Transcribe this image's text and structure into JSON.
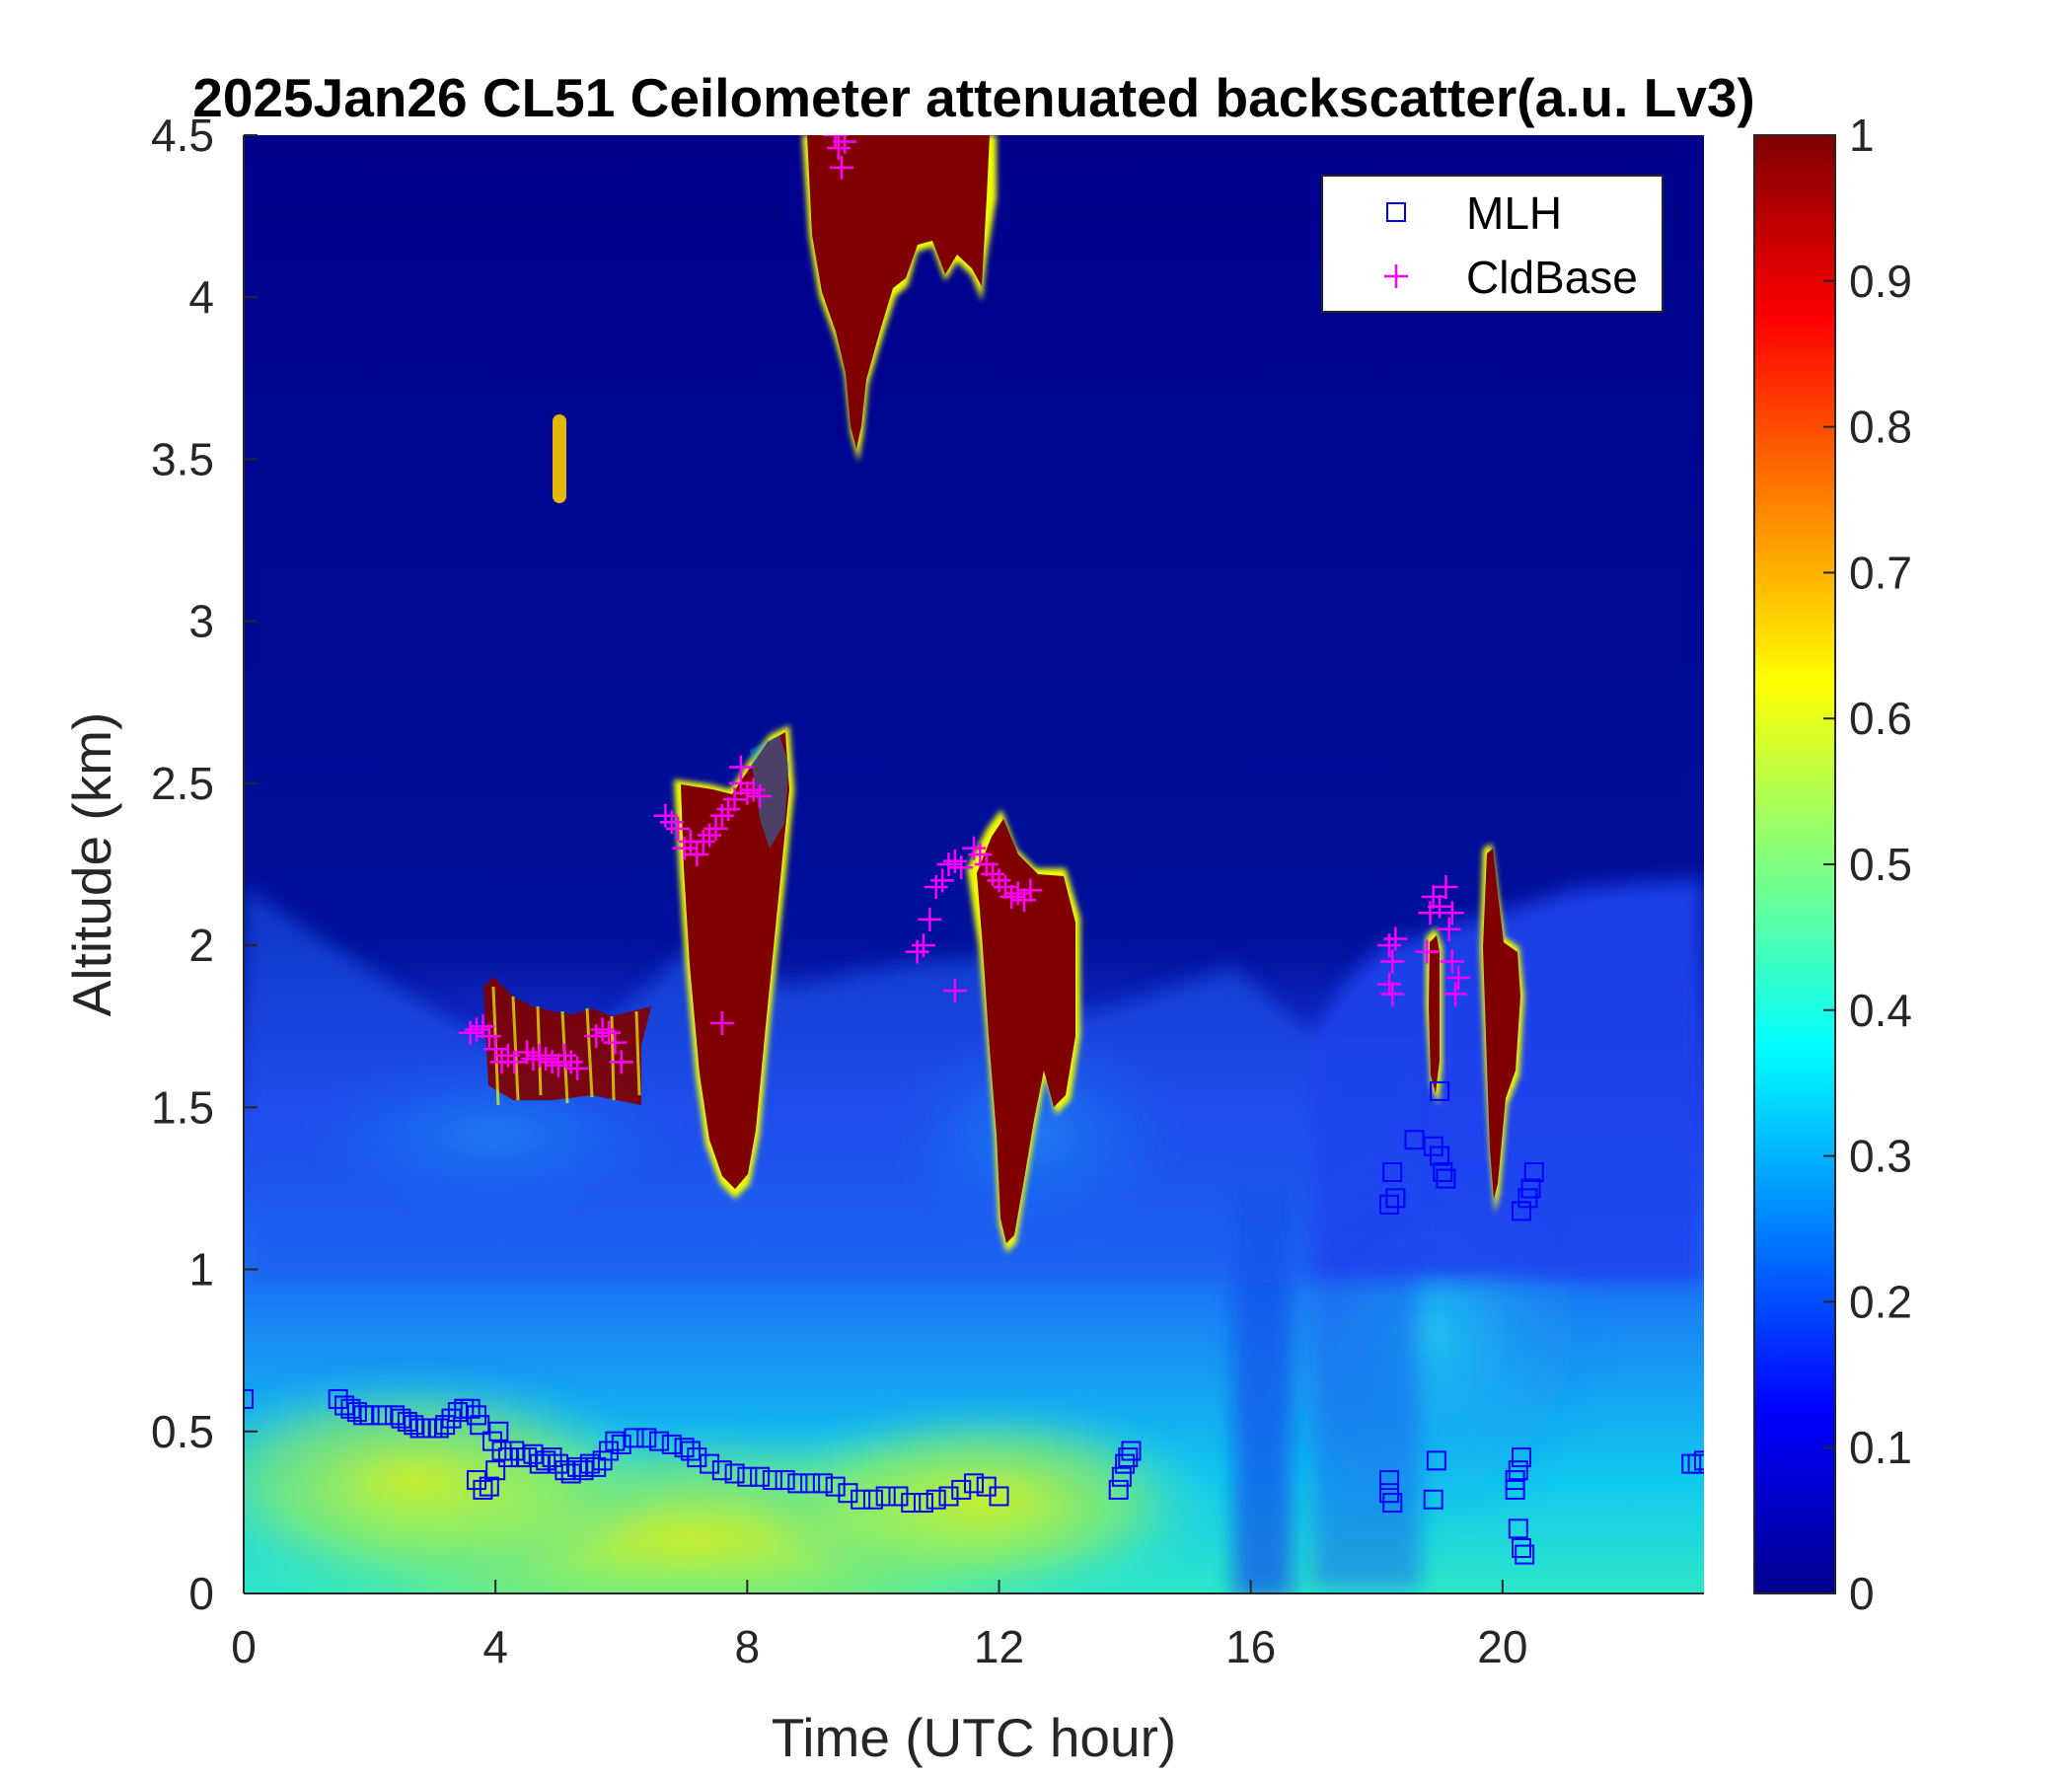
{
  "chart_data": {
    "type": "heatmap",
    "title": "2025Jan26 CL51 Ceilometer attenuated backscatter(a.u. Lv3)",
    "xlabel": "Time (UTC hour)",
    "ylabel": "Altitude (km)",
    "xlim": [
      0,
      23.2
    ],
    "ylim": [
      0,
      4.5
    ],
    "x_ticks": [
      "0",
      "4",
      "8",
      "12",
      "16",
      "20"
    ],
    "y_ticks": [
      "0",
      "0.5",
      "1",
      "1.5",
      "2",
      "2.5",
      "3",
      "3.5",
      "4",
      "4.5"
    ],
    "colorbar": {
      "colormap": "jet",
      "range": [
        0,
        1
      ],
      "ticks": [
        "0",
        "0.1",
        "0.2",
        "0.3",
        "0.4",
        "0.5",
        "0.6",
        "0.7",
        "0.8",
        "0.9",
        "1"
      ]
    },
    "legend": {
      "placement": "top-right",
      "entries": [
        {
          "label": "MLH",
          "marker": "square",
          "color": "#0000ff"
        },
        {
          "label": "CldBase",
          "marker": "plus",
          "color": "#ff00ff"
        }
      ]
    },
    "series": [
      {
        "name": "MLH",
        "marker": "square",
        "color": "#0000ff",
        "points": [
          [
            0.0,
            0.6
          ],
          [
            1.5,
            0.6
          ],
          [
            1.6,
            0.58
          ],
          [
            1.7,
            0.57
          ],
          [
            1.8,
            0.56
          ],
          [
            1.9,
            0.55
          ],
          [
            2.0,
            0.55
          ],
          [
            2.2,
            0.55
          ],
          [
            2.4,
            0.55
          ],
          [
            2.5,
            0.54
          ],
          [
            2.6,
            0.53
          ],
          [
            2.7,
            0.52
          ],
          [
            2.8,
            0.51
          ],
          [
            2.9,
            0.51
          ],
          [
            3.0,
            0.51
          ],
          [
            3.1,
            0.51
          ],
          [
            3.2,
            0.52
          ],
          [
            3.3,
            0.54
          ],
          [
            3.4,
            0.56
          ],
          [
            3.5,
            0.57
          ],
          [
            3.6,
            0.57
          ],
          [
            3.7,
            0.55
          ],
          [
            3.75,
            0.52
          ],
          [
            3.7,
            0.35
          ],
          [
            3.8,
            0.32
          ],
          [
            3.9,
            0.33
          ],
          [
            3.95,
            0.47
          ],
          [
            4.0,
            0.38
          ],
          [
            4.05,
            0.5
          ],
          [
            4.1,
            0.44
          ],
          [
            4.2,
            0.42
          ],
          [
            4.3,
            0.44
          ],
          [
            4.4,
            0.42
          ],
          [
            4.5,
            0.42
          ],
          [
            4.6,
            0.43
          ],
          [
            4.7,
            0.4
          ],
          [
            4.8,
            0.41
          ],
          [
            4.9,
            0.42
          ],
          [
            5.0,
            0.4
          ],
          [
            5.1,
            0.38
          ],
          [
            5.2,
            0.37
          ],
          [
            5.3,
            0.39
          ],
          [
            5.4,
            0.38
          ],
          [
            5.5,
            0.4
          ],
          [
            5.6,
            0.39
          ],
          [
            5.7,
            0.41
          ],
          [
            5.8,
            0.44
          ],
          [
            5.9,
            0.47
          ],
          [
            6.0,
            0.46
          ],
          [
            6.2,
            0.48
          ],
          [
            6.4,
            0.48
          ],
          [
            6.6,
            0.47
          ],
          [
            6.8,
            0.46
          ],
          [
            7.0,
            0.45
          ],
          [
            7.1,
            0.44
          ],
          [
            7.2,
            0.42
          ],
          [
            7.4,
            0.4
          ],
          [
            7.6,
            0.38
          ],
          [
            7.8,
            0.37
          ],
          [
            8.0,
            0.36
          ],
          [
            8.2,
            0.36
          ],
          [
            8.4,
            0.35
          ],
          [
            8.6,
            0.35
          ],
          [
            8.8,
            0.34
          ],
          [
            9.0,
            0.34
          ],
          [
            9.2,
            0.34
          ],
          [
            9.4,
            0.33
          ],
          [
            9.6,
            0.31
          ],
          [
            9.8,
            0.29
          ],
          [
            10.0,
            0.29
          ],
          [
            10.2,
            0.3
          ],
          [
            10.4,
            0.3
          ],
          [
            10.6,
            0.28
          ],
          [
            10.8,
            0.28
          ],
          [
            11.0,
            0.29
          ],
          [
            11.2,
            0.3
          ],
          [
            11.4,
            0.32
          ],
          [
            11.6,
            0.34
          ],
          [
            11.8,
            0.33
          ],
          [
            12.0,
            0.3
          ],
          [
            13.9,
            0.32
          ],
          [
            13.95,
            0.36
          ],
          [
            14.0,
            0.4
          ],
          [
            14.05,
            0.42
          ],
          [
            14.1,
            0.44
          ],
          [
            18.2,
            0.35
          ],
          [
            18.25,
            0.28
          ],
          [
            18.2,
            0.31
          ],
          [
            18.9,
            0.29
          ],
          [
            18.95,
            0.41
          ],
          [
            18.2,
            1.2
          ],
          [
            18.25,
            1.3
          ],
          [
            18.3,
            1.22
          ],
          [
            18.6,
            1.4
          ],
          [
            18.9,
            1.38
          ],
          [
            19.0,
            1.55
          ],
          [
            19.05,
            1.3
          ],
          [
            19.1,
            1.28
          ],
          [
            19.0,
            1.35
          ],
          [
            20.2,
            0.35
          ],
          [
            20.25,
            0.38
          ],
          [
            20.3,
            0.42
          ],
          [
            20.2,
            0.32
          ],
          [
            20.25,
            0.2
          ],
          [
            20.3,
            0.14
          ],
          [
            20.35,
            0.12
          ],
          [
            20.3,
            1.18
          ],
          [
            20.4,
            1.22
          ],
          [
            20.5,
            1.3
          ],
          [
            20.45,
            1.25
          ],
          [
            23.0,
            0.4
          ],
          [
            23.1,
            0.4
          ],
          [
            23.2,
            0.41
          ]
        ]
      },
      {
        "name": "CldBase",
        "marker": "plus",
        "color": "#ff00ff",
        "points": [
          [
            3.6,
            1.73
          ],
          [
            3.7,
            1.74
          ],
          [
            3.8,
            1.75
          ],
          [
            3.9,
            1.72
          ],
          [
            4.0,
            1.68
          ],
          [
            4.1,
            1.64
          ],
          [
            4.2,
            1.66
          ],
          [
            4.3,
            1.64
          ],
          [
            4.5,
            1.67
          ],
          [
            4.6,
            1.65
          ],
          [
            4.7,
            1.66
          ],
          [
            4.8,
            1.65
          ],
          [
            4.9,
            1.64
          ],
          [
            5.0,
            1.63
          ],
          [
            5.1,
            1.66
          ],
          [
            5.2,
            1.64
          ],
          [
            5.3,
            1.62
          ],
          [
            5.6,
            1.72
          ],
          [
            5.7,
            1.74
          ],
          [
            5.8,
            1.73
          ],
          [
            5.9,
            1.7
          ],
          [
            6.0,
            1.64
          ],
          [
            6.7,
            2.4
          ],
          [
            6.8,
            2.38
          ],
          [
            6.9,
            2.36
          ],
          [
            7.0,
            2.3
          ],
          [
            7.1,
            2.32
          ],
          [
            7.2,
            2.28
          ],
          [
            7.3,
            2.32
          ],
          [
            7.4,
            2.34
          ],
          [
            7.5,
            2.36
          ],
          [
            7.6,
            2.4
          ],
          [
            7.7,
            2.42
          ],
          [
            7.8,
            2.45
          ],
          [
            7.9,
            2.5
          ],
          [
            8.0,
            2.47
          ],
          [
            8.1,
            2.48
          ],
          [
            8.2,
            2.46
          ],
          [
            7.6,
            1.76
          ],
          [
            7.9,
            2.55
          ],
          [
            9.4,
            4.5
          ],
          [
            9.45,
            4.46
          ],
          [
            9.5,
            4.4
          ],
          [
            9.55,
            4.48
          ],
          [
            10.7,
            1.98
          ],
          [
            10.8,
            2.0
          ],
          [
            10.9,
            2.08
          ],
          [
            11.0,
            2.18
          ],
          [
            11.1,
            2.2
          ],
          [
            11.2,
            2.25
          ],
          [
            11.3,
            2.26
          ],
          [
            11.4,
            2.24
          ],
          [
            11.3,
            1.86
          ],
          [
            11.6,
            2.3
          ],
          [
            11.7,
            2.28
          ],
          [
            11.8,
            2.25
          ],
          [
            11.9,
            2.22
          ],
          [
            12.0,
            2.2
          ],
          [
            12.1,
            2.18
          ],
          [
            12.2,
            2.15
          ],
          [
            12.3,
            2.16
          ],
          [
            12.4,
            2.14
          ],
          [
            12.5,
            2.17
          ],
          [
            18.2,
            2.0
          ],
          [
            18.25,
            1.95
          ],
          [
            18.2,
            1.88
          ],
          [
            18.25,
            1.85
          ],
          [
            18.3,
            2.02
          ],
          [
            18.8,
            1.98
          ],
          [
            18.85,
            2.1
          ],
          [
            18.9,
            2.15
          ],
          [
            19.0,
            2.12
          ],
          [
            19.1,
            2.18
          ],
          [
            19.2,
            2.1
          ],
          [
            19.15,
            2.05
          ],
          [
            19.2,
            1.95
          ],
          [
            19.25,
            1.85
          ],
          [
            19.3,
            1.9
          ]
        ]
      }
    ],
    "features": [
      {
        "description": "cloud layer",
        "x_range": [
          9.0,
          11.8
        ],
        "y_range": [
          3.5,
          4.5
        ],
        "value": 1
      },
      {
        "description": "cloud layer",
        "x_range": [
          7.0,
          8.6
        ],
        "y_range": [
          1.2,
          2.65
        ],
        "value": 1
      },
      {
        "description": "cloud layer",
        "x_range": [
          11.5,
          13.3
        ],
        "y_range": [
          1.05,
          2.4
        ],
        "value": 1
      },
      {
        "description": "cloud layer",
        "x_range": [
          18.8,
          20.4
        ],
        "y_range": [
          1.2,
          2.3
        ],
        "value": 1
      },
      {
        "description": "aerosol layer",
        "x_range": [
          0,
          16
        ],
        "y_range": [
          0,
          0.5
        ],
        "value": 0.5
      }
    ]
  }
}
